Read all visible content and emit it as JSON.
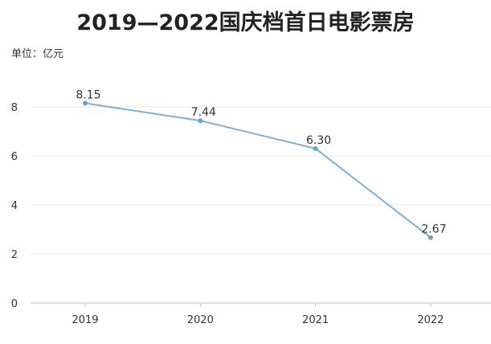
{
  "chart_data": {
    "type": "line",
    "title": "2019—2022国庆档首日电影票房",
    "unit_label": "单位：亿元",
    "categories": [
      "2019",
      "2020",
      "2021",
      "2022"
    ],
    "series": [
      {
        "name": "首日电影票房",
        "values": [
          8.15,
          7.44,
          6.3,
          2.67
        ],
        "labels": [
          "8.15",
          "7.44",
          "6.30",
          "2.67"
        ]
      }
    ],
    "yticks": [
      "0",
      "2",
      "4",
      "6",
      "8"
    ],
    "ylim": [
      0,
      10
    ],
    "xlabel": "",
    "ylabel": "",
    "grid": true,
    "colors": {
      "line": "#7fb0d1",
      "marker": "#6a9fc6",
      "grid": "#e6e6e6",
      "axis": "#bbbbbb"
    }
  }
}
